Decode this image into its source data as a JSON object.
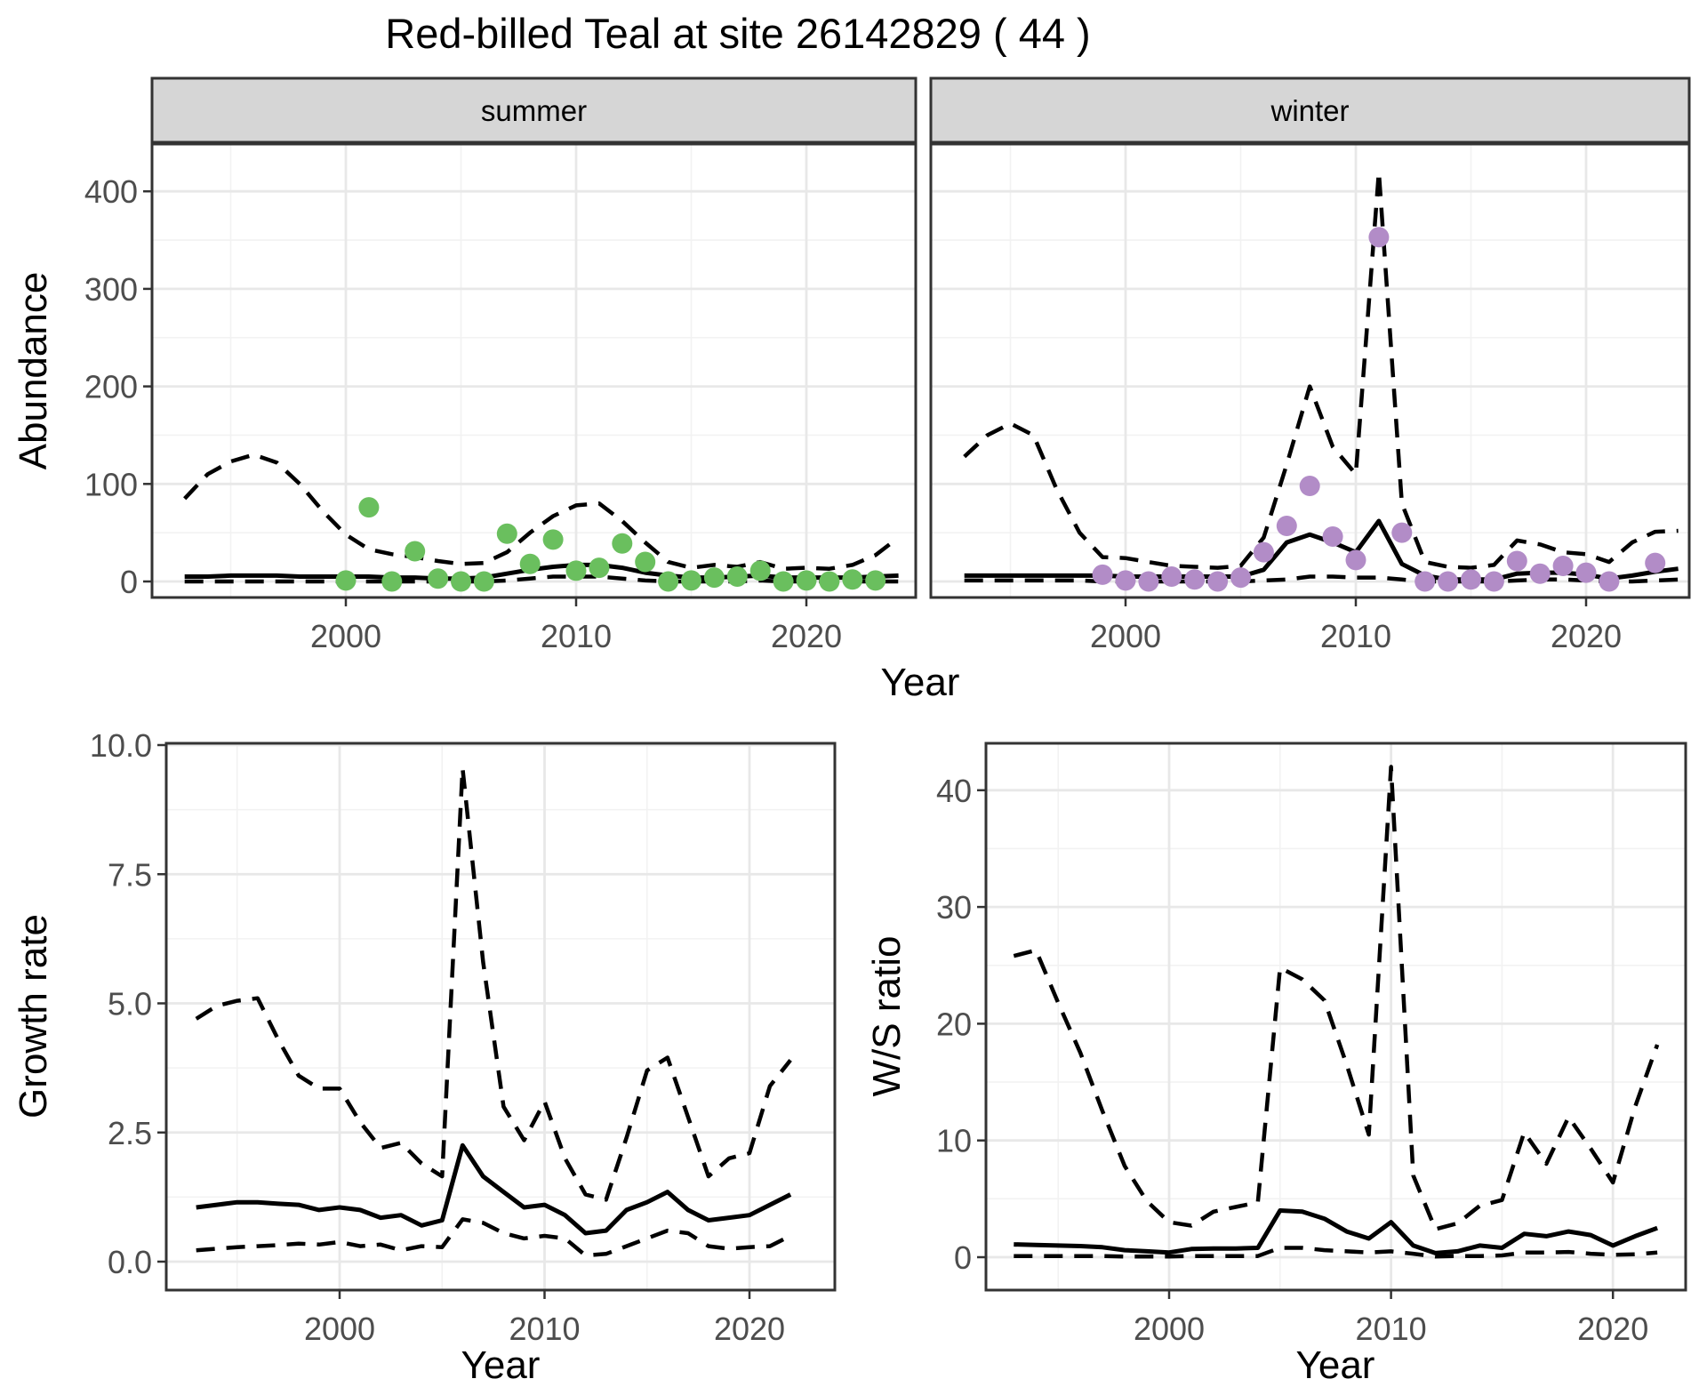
{
  "title": "Red-billed Teal at site 26142829 ( 44 )",
  "colors": {
    "summer_point": "#6abf5e",
    "winter_point": "#b28cc7",
    "line": "#000000",
    "strip_bg": "#d6d6d6",
    "panel_bg": "#ffffff",
    "grid_major": "#e8e8e8",
    "grid_minor": "#f2f2f2",
    "border": "#333333",
    "tick_label": "#4d4d4d",
    "text": "#000000"
  },
  "chart_data": [
    {
      "id": "abundance-summer",
      "type": "line+scatter",
      "facet": "summer",
      "ylabel": "Abundance",
      "xlabel": "Year",
      "xlim": [
        1991.5,
        2024.7
      ],
      "ylim": [
        -16,
        448
      ],
      "x_ticks": [
        2000,
        2010,
        2020
      ],
      "x_tick_labels": [
        "2000",
        "2010",
        "2020"
      ],
      "x_minor": [
        1995,
        2005,
        2015
      ],
      "y_ticks": [
        0,
        100,
        200,
        300,
        400
      ],
      "y_tick_labels": [
        "0",
        "100",
        "200",
        "300",
        "400"
      ],
      "y_minor": [
        50,
        150,
        250,
        350
      ],
      "grid": true,
      "legend": "none",
      "line_years": [
        1993,
        1994,
        1995,
        1996,
        1997,
        1998,
        1999,
        2000,
        2001,
        2002,
        2003,
        2004,
        2005,
        2006,
        2007,
        2008,
        2009,
        2010,
        2011,
        2012,
        2013,
        2014,
        2015,
        2016,
        2017,
        2018,
        2019,
        2020,
        2021,
        2022,
        2023,
        2024
      ],
      "series": [
        {
          "name": "mean",
          "linetype": "solid",
          "values": [
            5,
            5,
            6,
            6,
            6,
            5,
            5,
            5,
            5,
            4,
            4,
            3,
            3,
            4,
            8,
            12,
            15,
            17,
            17,
            14,
            9,
            6,
            4,
            4,
            5,
            6,
            4,
            4,
            4,
            4,
            5,
            6
          ]
        },
        {
          "name": "upper_95ci",
          "linetype": "dashed",
          "values": [
            85,
            110,
            123,
            130,
            122,
            100,
            72,
            48,
            33,
            28,
            25,
            21,
            18,
            19,
            30,
            50,
            67,
            78,
            80,
            62,
            40,
            20,
            14,
            17,
            15,
            20,
            13,
            14,
            13,
            17,
            27,
            45
          ]
        },
        {
          "name": "lower_95ci",
          "linetype": "dashed",
          "values": [
            0,
            0,
            0,
            0,
            0,
            0,
            0,
            0,
            0,
            0,
            0,
            0,
            0,
            0,
            1,
            3,
            5,
            5,
            5,
            3,
            1,
            0,
            0,
            0,
            0,
            1,
            0,
            0,
            0,
            0,
            0,
            0
          ]
        }
      ],
      "points": {
        "name": "observed_counts",
        "color_key": "summer_point",
        "years": [
          2000,
          2001,
          2002,
          2003,
          2004,
          2005,
          2006,
          2007,
          2008,
          2009,
          2010,
          2011,
          2012,
          2013,
          2014,
          2015,
          2016,
          2017,
          2018,
          2019,
          2020,
          2021,
          2022,
          2023
        ],
        "values": [
          1,
          76,
          0,
          31,
          3,
          0,
          0,
          49,
          18,
          43,
          11,
          14,
          39,
          20,
          0,
          1,
          4,
          5,
          11,
          0,
          1,
          0,
          2,
          1
        ]
      }
    },
    {
      "id": "abundance-winter",
      "type": "line+scatter",
      "facet": "winter",
      "ylabel": "Abundance",
      "xlabel": "Year",
      "xlim": [
        1991.5,
        2024.7
      ],
      "ylim": [
        -16,
        448
      ],
      "x_ticks": [
        2000,
        2010,
        2020
      ],
      "x_tick_labels": [
        "2000",
        "2010",
        "2020"
      ],
      "x_minor": [
        1995,
        2005,
        2015
      ],
      "y_ticks": [
        0,
        100,
        200,
        300,
        400
      ],
      "y_tick_labels": [
        "0",
        "100",
        "200",
        "300",
        "400"
      ],
      "y_minor": [
        50,
        150,
        250,
        350
      ],
      "grid": true,
      "legend": "none",
      "line_years": [
        1993,
        1994,
        1995,
        1996,
        1997,
        1998,
        1999,
        2000,
        2001,
        2002,
        2003,
        2004,
        2005,
        2006,
        2007,
        2008,
        2009,
        2010,
        2011,
        2012,
        2013,
        2014,
        2015,
        2016,
        2017,
        2018,
        2019,
        2020,
        2021,
        2022,
        2023,
        2024
      ],
      "series": [
        {
          "name": "mean",
          "linetype": "solid",
          "values": [
            6,
            6,
            6,
            6,
            6,
            6,
            6,
            5,
            5,
            5,
            5,
            5,
            5,
            12,
            40,
            48,
            40,
            30,
            62,
            18,
            6,
            2,
            2,
            2,
            8,
            9,
            9,
            7,
            3,
            6,
            10,
            13
          ]
        },
        {
          "name": "upper_95ci",
          "linetype": "dashed",
          "values": [
            128,
            150,
            162,
            150,
            95,
            50,
            25,
            24,
            20,
            16,
            15,
            14,
            16,
            45,
            120,
            200,
            138,
            110,
            420,
            80,
            20,
            15,
            14,
            17,
            42,
            38,
            30,
            28,
            20,
            40,
            51,
            52
          ]
        },
        {
          "name": "lower_95ci",
          "linetype": "dashed",
          "values": [
            1,
            1,
            1,
            1,
            1,
            1,
            0,
            0,
            0,
            0,
            0,
            0,
            0,
            1,
            2,
            5,
            5,
            4,
            4,
            2,
            0,
            0,
            0,
            0,
            1,
            2,
            2,
            1,
            0,
            0,
            1,
            2
          ]
        }
      ],
      "points": {
        "name": "observed_counts",
        "color_key": "winter_point",
        "years": [
          1999,
          2000,
          2001,
          2002,
          2003,
          2004,
          2005,
          2006,
          2007,
          2008,
          2009,
          2010,
          2011,
          2012,
          2013,
          2014,
          2015,
          2016,
          2017,
          2018,
          2019,
          2020,
          2021,
          2023
        ],
        "values": [
          7,
          1,
          0,
          5,
          2,
          0,
          4,
          30,
          57,
          98,
          46,
          22,
          353,
          50,
          0,
          0,
          2,
          0,
          21,
          8,
          16,
          9,
          0,
          19
        ]
      }
    },
    {
      "id": "growth-rate",
      "type": "line",
      "facet": null,
      "ylabel": "Growth rate",
      "xlabel": "Year",
      "xlim": [
        1991.5,
        2024.2
      ],
      "ylim": [
        -0.55,
        10.05
      ],
      "x_ticks": [
        2000,
        2010,
        2020
      ],
      "x_tick_labels": [
        "2000",
        "2010",
        "2020"
      ],
      "x_minor": [
        1995,
        2005,
        2015
      ],
      "y_ticks": [
        0,
        2.5,
        5,
        7.5,
        10
      ],
      "y_tick_labels": [
        "0.0",
        "2.5",
        "5.0",
        "7.5",
        "10.0"
      ],
      "y_minor": [
        1.25,
        3.75,
        6.25,
        8.75
      ],
      "grid": true,
      "legend": "none",
      "line_years": [
        1993,
        1994,
        1995,
        1996,
        1997,
        1998,
        1999,
        2000,
        2001,
        2002,
        2003,
        2004,
        2005,
        2006,
        2007,
        2008,
        2009,
        2010,
        2011,
        2012,
        2013,
        2014,
        2015,
        2016,
        2017,
        2018,
        2019,
        2020,
        2021,
        2022
      ],
      "series": [
        {
          "name": "mean",
          "linetype": "solid",
          "values": [
            1.05,
            1.1,
            1.15,
            1.15,
            1.12,
            1.1,
            1.0,
            1.05,
            1.0,
            0.85,
            0.9,
            0.7,
            0.8,
            2.25,
            1.65,
            1.35,
            1.05,
            1.1,
            0.9,
            0.55,
            0.6,
            1.0,
            1.15,
            1.35,
            1.0,
            0.8,
            0.85,
            0.9,
            1.1,
            1.3
          ]
        },
        {
          "name": "upper_95ci",
          "linetype": "dashed",
          "values": [
            4.7,
            4.95,
            5.05,
            5.1,
            4.3,
            3.6,
            3.35,
            3.35,
            2.7,
            2.2,
            2.3,
            1.9,
            1.65,
            9.55,
            5.8,
            3.0,
            2.35,
            3.1,
            2.0,
            1.3,
            1.2,
            2.4,
            3.7,
            3.95,
            2.8,
            1.65,
            2.0,
            2.1,
            3.4,
            3.9
          ]
        },
        {
          "name": "lower_95ci",
          "linetype": "dashed",
          "values": [
            0.22,
            0.25,
            0.28,
            0.3,
            0.32,
            0.35,
            0.33,
            0.38,
            0.3,
            0.33,
            0.22,
            0.3,
            0.28,
            0.82,
            0.75,
            0.55,
            0.45,
            0.5,
            0.45,
            0.12,
            0.15,
            0.3,
            0.45,
            0.6,
            0.55,
            0.3,
            0.25,
            0.28,
            0.3,
            0.5
          ]
        }
      ],
      "points": null
    },
    {
      "id": "ws-ratio",
      "type": "line",
      "facet": null,
      "ylabel": "W/S ratio",
      "xlabel": "Year",
      "xlim": [
        1991.7,
        2023.3
      ],
      "ylim": [
        -2.8,
        44
      ],
      "x_ticks": [
        2000,
        2010,
        2020
      ],
      "x_tick_labels": [
        "2000",
        "2010",
        "2020"
      ],
      "x_minor": [
        1995,
        2005,
        2015
      ],
      "y_ticks": [
        0,
        10,
        20,
        30,
        40
      ],
      "y_tick_labels": [
        "0",
        "10",
        "20",
        "30",
        "40"
      ],
      "y_minor": [
        5,
        15,
        25,
        35
      ],
      "grid": true,
      "legend": "none",
      "line_years": [
        1993,
        1994,
        1995,
        1996,
        1997,
        1998,
        1999,
        2000,
        2001,
        2002,
        2003,
        2004,
        2005,
        2006,
        2007,
        2008,
        2009,
        2010,
        2011,
        2012,
        2013,
        2014,
        2015,
        2016,
        2017,
        2018,
        2019,
        2020,
        2021,
        2022
      ],
      "series": [
        {
          "name": "mean",
          "linetype": "solid",
          "values": [
            1.1,
            1.05,
            1.0,
            0.95,
            0.85,
            0.6,
            0.5,
            0.4,
            0.7,
            0.75,
            0.75,
            0.8,
            4.0,
            3.9,
            3.3,
            2.2,
            1.6,
            3.0,
            1.0,
            0.35,
            0.5,
            1.0,
            0.8,
            2.0,
            1.8,
            2.2,
            1.9,
            1.0,
            1.8,
            2.5
          ]
        },
        {
          "name": "upper_95ci",
          "linetype": "dashed",
          "values": [
            25.8,
            26.3,
            21.8,
            17.5,
            12.5,
            7.8,
            4.8,
            3.0,
            2.7,
            3.9,
            4.3,
            4.7,
            24.8,
            23.8,
            22.0,
            16.5,
            10.5,
            42.0,
            7.0,
            2.4,
            2.9,
            4.4,
            4.9,
            10.7,
            8.0,
            12.0,
            9.3,
            6.4,
            12.9,
            18.2
          ]
        },
        {
          "name": "lower_95ci",
          "linetype": "dashed",
          "values": [
            0.1,
            0.1,
            0.1,
            0.1,
            0.1,
            0.05,
            0.05,
            0.05,
            0.1,
            0.1,
            0.1,
            0.1,
            0.8,
            0.8,
            0.6,
            0.5,
            0.4,
            0.5,
            0.3,
            0.05,
            0.1,
            0.1,
            0.15,
            0.4,
            0.4,
            0.45,
            0.3,
            0.2,
            0.25,
            0.4
          ]
        }
      ],
      "points": null
    }
  ]
}
